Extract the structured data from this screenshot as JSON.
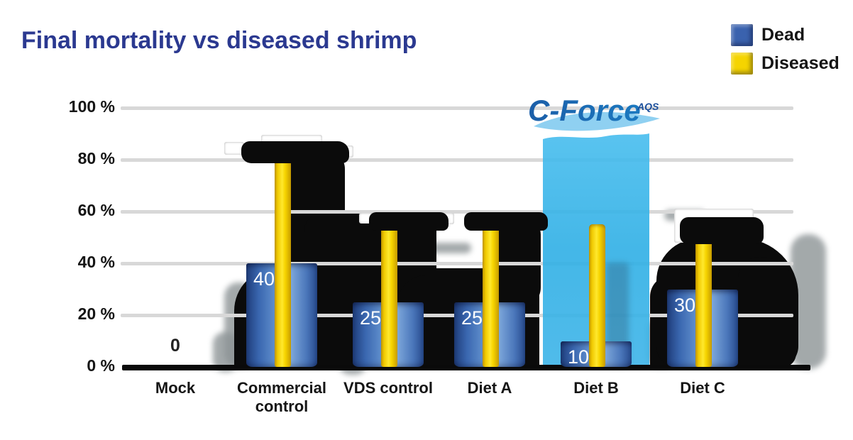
{
  "title": {
    "text": "Final mortality vs diseased shrimp",
    "color": "#2b3990"
  },
  "legend": {
    "items": [
      {
        "label": "Dead",
        "color": "#3a62ae"
      },
      {
        "label": "Diseased",
        "color": "#f5d400"
      }
    ]
  },
  "watermark": {
    "brand": "C-Force",
    "suffix": "AQS"
  },
  "chart_data": {
    "type": "bar",
    "categories": [
      "Mock",
      "Commercial control",
      "VDS control",
      "Diet A",
      "Diet B",
      "Diet C"
    ],
    "series": [
      {
        "name": "Dead",
        "color": "#3a62ae",
        "values": [
          0,
          40,
          25,
          25,
          10,
          30
        ]
      },
      {
        "name": "Diseased",
        "color": "#f5d400",
        "values": [
          0,
          80,
          55,
          55,
          55,
          50
        ]
      }
    ],
    "bar_value_labels": [
      "0",
      "40",
      "25",
      "25",
      "10",
      "30"
    ],
    "title": "Final mortality vs diseased shrimp",
    "xlabel": "",
    "ylabel": "",
    "ylim": [
      0,
      100
    ],
    "yticks": [
      0,
      20,
      40,
      60,
      80,
      100
    ],
    "ytick_suffix": " %",
    "grid": "horizontal",
    "legend_position": "top-right",
    "highlighted_category": "Diet B",
    "highlight_color": "#36b3e8"
  }
}
